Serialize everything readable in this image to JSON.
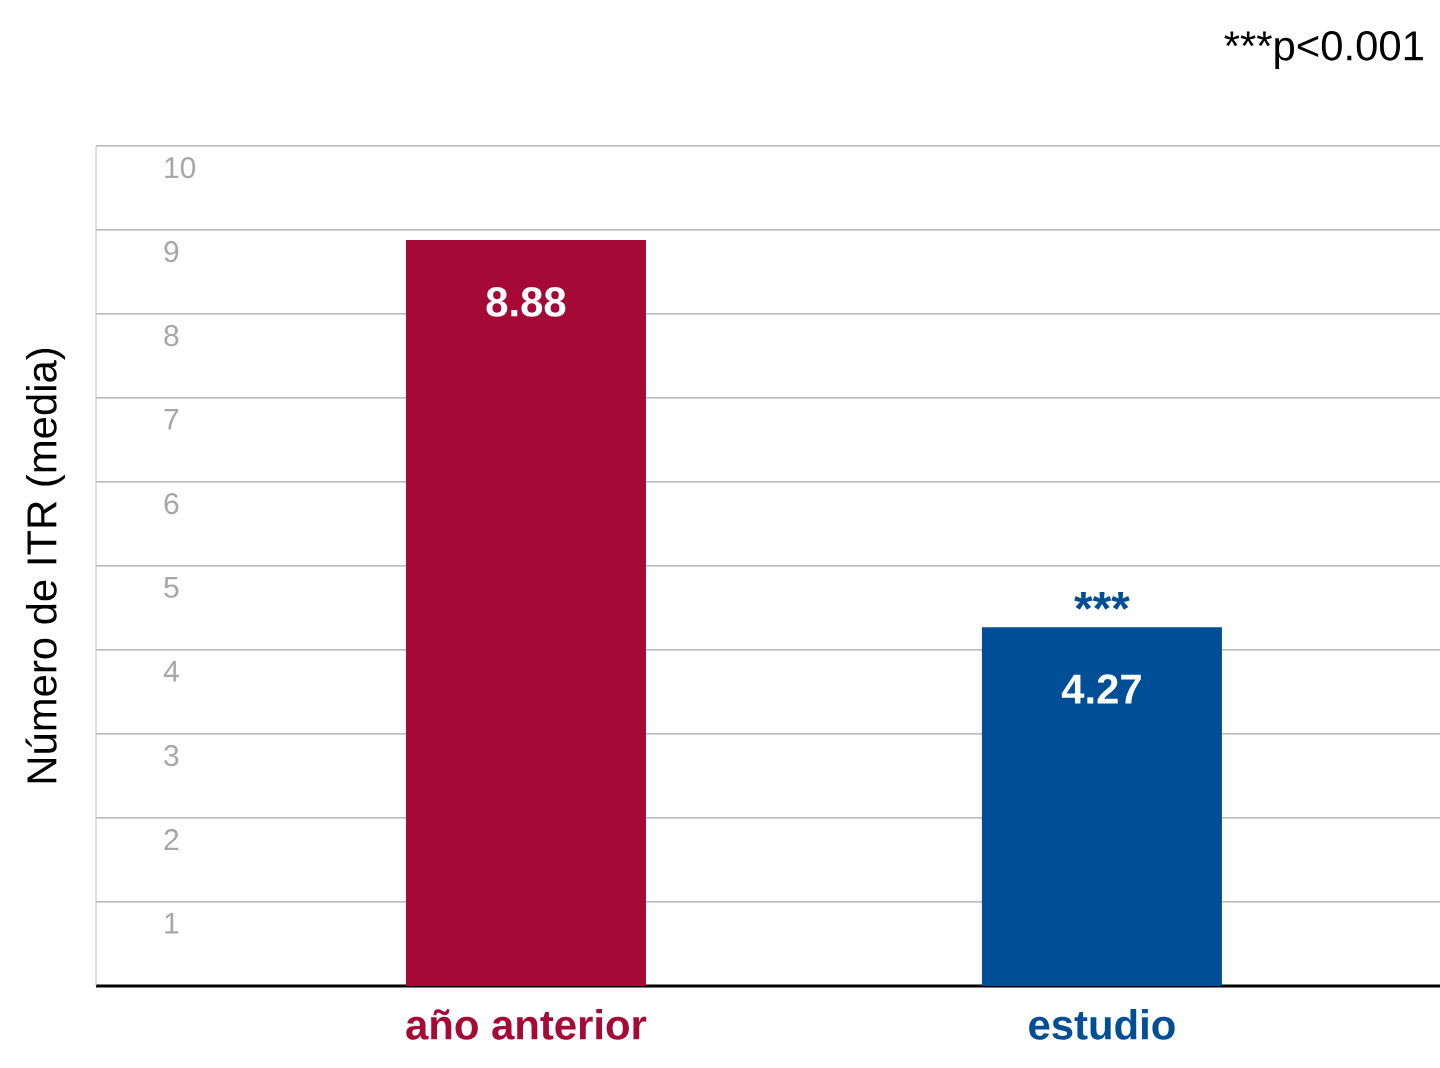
{
  "chart_data": {
    "type": "bar",
    "ylabel": "Número de ITR (media)",
    "categories": [
      "año anterior",
      "estudio"
    ],
    "values": [
      8.88,
      4.27
    ],
    "colors": [
      "#a50a37",
      "#004f96"
    ],
    "ylim": [
      0,
      10
    ],
    "yticks": [
      1,
      2,
      3,
      4,
      5,
      6,
      7,
      8,
      9,
      10
    ],
    "grid": "y",
    "data_labels": true,
    "annotations": [
      {
        "text": "***",
        "x": "estudio",
        "y": 4.27
      },
      "***p<0.001"
    ]
  }
}
